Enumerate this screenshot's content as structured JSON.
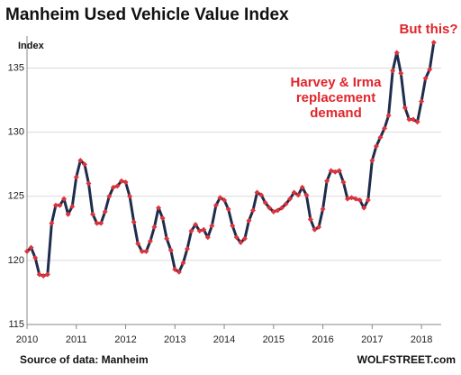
{
  "chart_data": {
    "type": "line",
    "title": "Manheim Used Vehicle Value Index",
    "y_label": "Index",
    "source": "Source of data: Manheim",
    "credit": "WOLFSTREET.com",
    "annotations": [
      "Harvey & Irma",
      "replacement",
      "demand",
      "But this?"
    ],
    "annotation_color": "#e0252b",
    "xlim": [
      2010,
      2018.4
    ],
    "xticks": [
      2010,
      2011,
      2012,
      2013,
      2014,
      2015,
      2016,
      2017,
      2018
    ],
    "ylim": [
      115,
      137.5
    ],
    "yticks": [
      115,
      120,
      125,
      130,
      135
    ],
    "grid": true,
    "x": [
      2010,
      2010.083,
      2010.167,
      2010.25,
      2010.333,
      2010.417,
      2010.5,
      2010.583,
      2010.667,
      2010.75,
      2010.833,
      2010.917,
      2011,
      2011.083,
      2011.167,
      2011.25,
      2011.333,
      2011.417,
      2011.5,
      2011.583,
      2011.667,
      2011.75,
      2011.833,
      2011.917,
      2012,
      2012.083,
      2012.167,
      2012.25,
      2012.333,
      2012.417,
      2012.5,
      2012.583,
      2012.667,
      2012.75,
      2012.833,
      2012.917,
      2013,
      2013.083,
      2013.167,
      2013.25,
      2013.333,
      2013.417,
      2013.5,
      2013.583,
      2013.667,
      2013.75,
      2013.833,
      2013.917,
      2014,
      2014.083,
      2014.167,
      2014.25,
      2014.333,
      2014.417,
      2014.5,
      2014.583,
      2014.667,
      2014.75,
      2014.833,
      2014.917,
      2015,
      2015.083,
      2015.167,
      2015.25,
      2015.333,
      2015.417,
      2015.5,
      2015.583,
      2015.667,
      2015.75,
      2015.833,
      2015.917,
      2016,
      2016.083,
      2016.167,
      2016.25,
      2016.333,
      2016.417,
      2016.5,
      2016.583,
      2016.667,
      2016.75,
      2016.833,
      2016.917,
      2017,
      2017.083,
      2017.167,
      2017.25,
      2017.333,
      2017.417,
      2017.5,
      2017.583,
      2017.667,
      2017.75,
      2017.833,
      2017.917,
      2018,
      2018.083,
      2018.167,
      2018.25
    ],
    "series": [
      {
        "name": "Manheim Index",
        "color": "#1f2d4d",
        "marker_color": "#e0323a",
        "values": [
          120.7,
          121.0,
          120.2,
          118.9,
          118.8,
          118.9,
          122.9,
          124.3,
          124.3,
          124.8,
          123.6,
          124.2,
          126.5,
          127.8,
          127.5,
          126.0,
          123.6,
          122.9,
          122.9,
          123.8,
          125.0,
          125.7,
          125.8,
          126.2,
          126.1,
          125.0,
          123.0,
          121.3,
          120.7,
          120.7,
          121.5,
          122.6,
          124.1,
          123.3,
          121.7,
          120.8,
          119.3,
          119.1,
          119.8,
          120.9,
          122.3,
          122.8,
          122.3,
          122.4,
          121.8,
          122.7,
          124.3,
          124.9,
          124.7,
          124.0,
          122.7,
          121.8,
          121.4,
          121.7,
          123.1,
          123.9,
          125.3,
          125.1,
          124.5,
          124.1,
          123.8,
          123.9,
          124.1,
          124.4,
          124.8,
          125.3,
          125.1,
          125.7,
          125.1,
          123.2,
          122.4,
          122.6,
          124.0,
          126.2,
          127.0,
          126.9,
          127.0,
          126.1,
          124.8,
          124.9,
          124.8,
          124.7,
          124.1,
          124.7,
          127.8,
          128.9,
          129.6,
          130.3,
          131.3,
          134.8,
          136.2,
          134.6,
          131.9,
          131.0,
          131.0,
          130.8,
          132.4,
          134.2,
          134.9,
          137.0
        ]
      }
    ]
  }
}
